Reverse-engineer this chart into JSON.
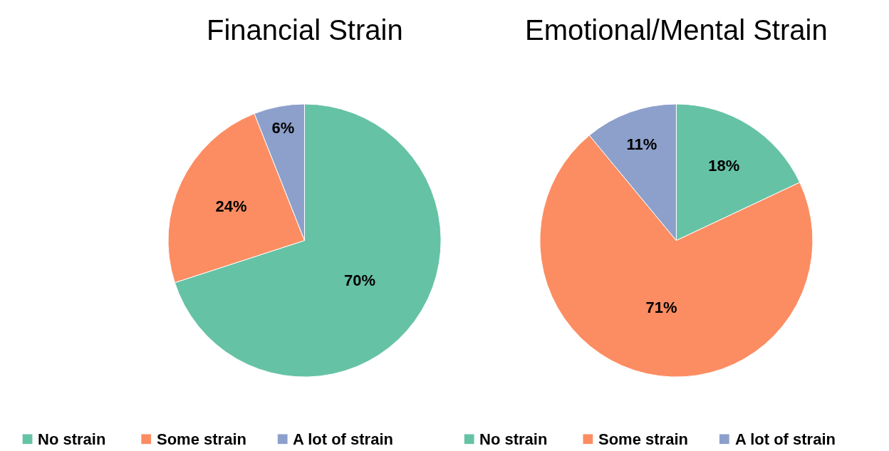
{
  "chart_data": [
    {
      "type": "pie",
      "title": "Financial Strain",
      "categories": [
        "No strain",
        "Some strain",
        "A lot of strain"
      ],
      "values": [
        70,
        24,
        6
      ],
      "colors": [
        "#66c2a5",
        "#fc8d62",
        "#8da0cb"
      ],
      "value_labels": [
        "70%",
        "24%",
        "6%"
      ],
      "legend": "bottom"
    },
    {
      "type": "pie",
      "title": "Emotional/Mental Strain",
      "categories": [
        "No strain",
        "Some strain",
        "A lot of strain"
      ],
      "values": [
        18,
        71,
        11
      ],
      "colors": [
        "#66c2a5",
        "#fc8d62",
        "#8da0cb"
      ],
      "value_labels": [
        "18%",
        "71%",
        "11%"
      ],
      "legend": "bottom"
    }
  ]
}
